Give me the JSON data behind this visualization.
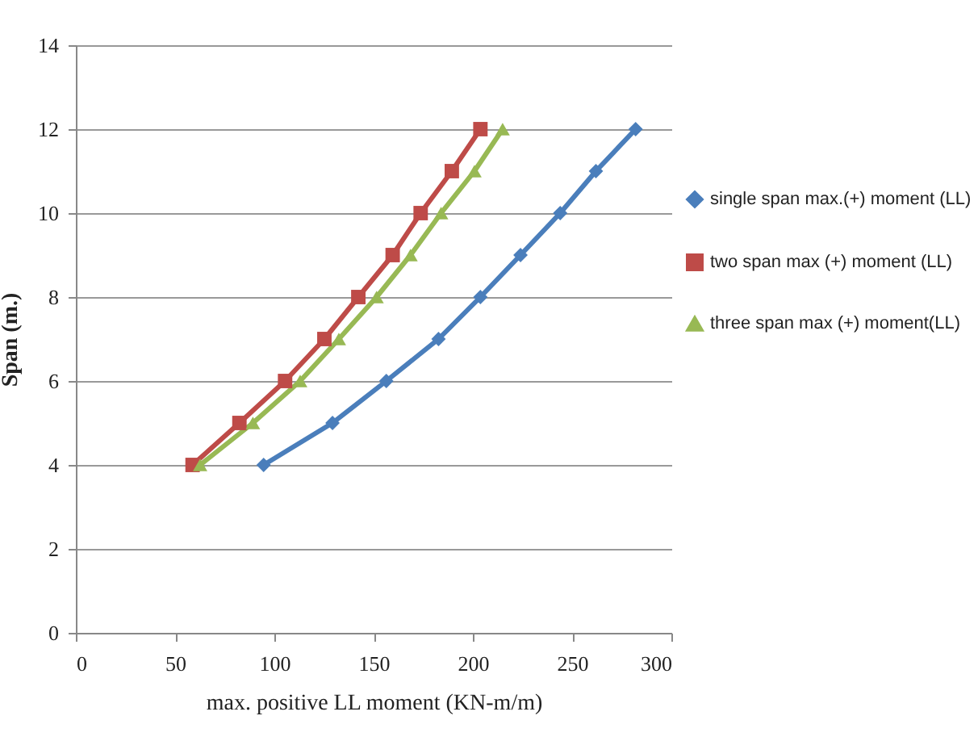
{
  "chart_data": {
    "type": "line",
    "xlabel": "max. positive LL moment (KN-m/m)",
    "ylabel": "Span (m.)",
    "xlim": [
      0,
      300
    ],
    "xticks": [
      0,
      50,
      100,
      150,
      200,
      250,
      300
    ],
    "ylim": [
      0,
      14
    ],
    "yticks": [
      0,
      2,
      4,
      6,
      8,
      10,
      12,
      14
    ],
    "grid": "y",
    "legend": "right",
    "series": [
      {
        "name": "single span max.(+) moment (LL)",
        "color": "#4a7ebb",
        "marker": "diamond",
        "x": [
          94.6,
          129.3,
          156.4,
          182.7,
          203.8,
          224,
          244,
          262,
          282
        ],
        "values": [
          4,
          5,
          6,
          7,
          8,
          9,
          10,
          11,
          12
        ]
      },
      {
        "name": "two span max (+) moment (LL)",
        "color": "#be4b48",
        "marker": "square",
        "x": [
          58.8,
          82.4,
          105.4,
          125.2,
          142.3,
          159.6,
          173.7,
          189.4,
          203.8
        ],
        "values": [
          4,
          5,
          6,
          7,
          8,
          9,
          10,
          11,
          12
        ]
      },
      {
        "name": "three  span max (+) moment(LL)",
        "color": "#98b954",
        "marker": "triangle",
        "x": [
          62.6,
          89.2,
          113,
          132.5,
          151.5,
          168.6,
          184,
          200.8,
          215
        ],
        "values": [
          4,
          5,
          6,
          7,
          8,
          9,
          10,
          11,
          12
        ]
      }
    ]
  }
}
